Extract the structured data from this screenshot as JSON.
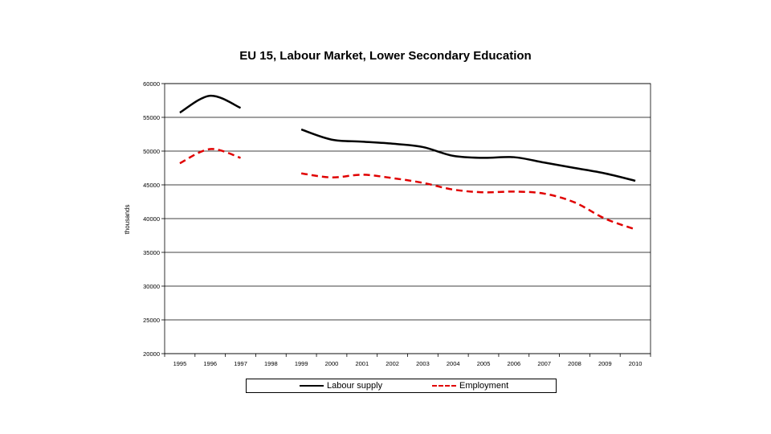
{
  "chart_data": {
    "type": "line",
    "title": "EU 15, Labour Market, Lower Secondary Education",
    "xlabel": "",
    "ylabel": "thousands",
    "ylim": [
      20000,
      60000
    ],
    "yticks": [
      "60000",
      "55000",
      "50000",
      "45000",
      "40000",
      "35000",
      "30000",
      "25000",
      "20000"
    ],
    "categories": [
      "1995",
      "1996",
      "1997",
      "1998",
      "1999",
      "2000",
      "2001",
      "2002",
      "2003",
      "2004",
      "2005",
      "2006",
      "2007",
      "2008",
      "2009",
      "2010"
    ],
    "grid": true,
    "legend_position": "bottom",
    "series": [
      {
        "name": "Labour supply",
        "color": "#000000",
        "style": "solid",
        "values": [
          55700,
          58200,
          56400,
          null,
          53200,
          51700,
          51400,
          51100,
          50600,
          49300,
          49000,
          49100,
          48300,
          47500,
          46700,
          45600
        ]
      },
      {
        "name": "Employment",
        "color": "#e00000",
        "style": "dashed",
        "values": [
          48200,
          50300,
          49000,
          null,
          46700,
          46100,
          46500,
          46000,
          45300,
          44300,
          43900,
          44000,
          43700,
          42400,
          40000,
          38400
        ]
      }
    ]
  }
}
